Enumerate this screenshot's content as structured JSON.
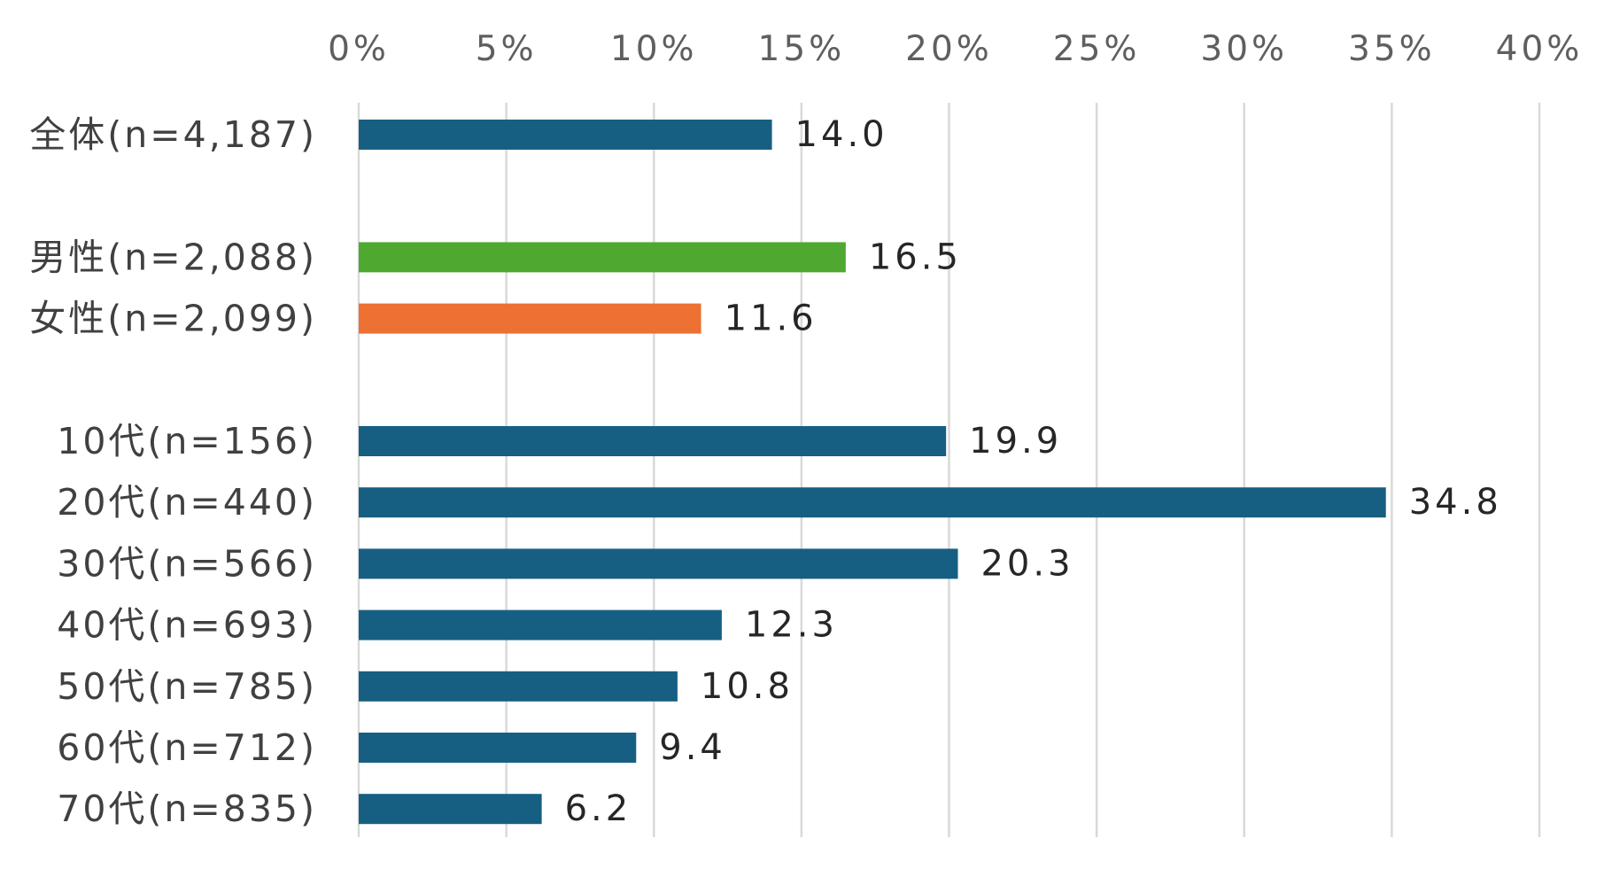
{
  "chart_data": {
    "type": "bar",
    "orientation": "horizontal",
    "title": "",
    "xlabel": "",
    "ylabel": "",
    "xlim": [
      0,
      40
    ],
    "x_ticks": [
      0,
      5,
      10,
      15,
      20,
      25,
      30,
      35,
      40
    ],
    "x_tick_labels": [
      "0%",
      "5%",
      "10%",
      "15%",
      "20%",
      "25%",
      "30%",
      "35%",
      "40%"
    ],
    "x_axis_position": "top",
    "grid": true,
    "legend": "none",
    "categories": [
      "全体(n=4,187)",
      "",
      "男性(n=2,088)",
      "女性(n=2,099)",
      "",
      "10代(n=156)",
      "20代(n=440)",
      "30代(n=566)",
      "40代(n=693)",
      "50代(n=785)",
      "60代(n=712)",
      "70代(n=835)"
    ],
    "values": [
      14.0,
      null,
      16.5,
      11.6,
      null,
      19.9,
      34.8,
      20.3,
      12.3,
      10.8,
      9.4,
      6.2
    ],
    "value_labels": [
      "14.0",
      "",
      "16.5",
      "11.6",
      "",
      "19.9",
      "34.8",
      "20.3",
      "12.3",
      "10.8",
      "9.4",
      "6.2"
    ],
    "bar_colors": [
      "#175f82",
      null,
      "#4fa830",
      "#ec7133",
      null,
      "#175f82",
      "#175f82",
      "#175f82",
      "#175f82",
      "#175f82",
      "#175f82",
      "#175f82"
    ],
    "colors": {
      "default": "#175f82",
      "male": "#4fa830",
      "female": "#ec7133",
      "grid": "#d9d9d9"
    }
  }
}
